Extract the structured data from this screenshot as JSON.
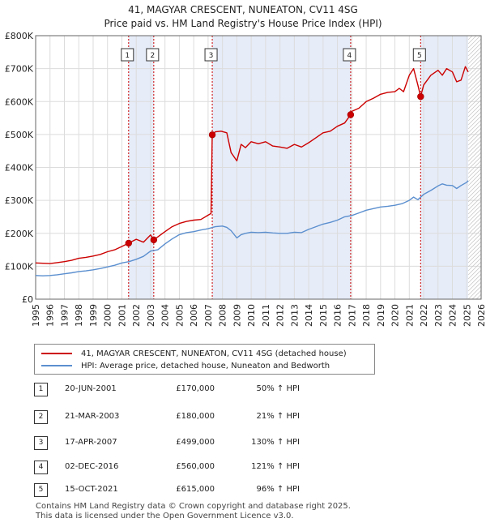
{
  "chart_data": {
    "type": "line",
    "title": "41, MAGYAR CRESCENT, NUNEATON, CV11 4SG",
    "subtitle": "Price paid vs. HM Land Registry's House Price Index (HPI)",
    "xlim": [
      1995,
      2026
    ],
    "ylim": [
      0,
      800000
    ],
    "x_ticks": [
      "1995",
      "1996",
      "1997",
      "1998",
      "1999",
      "2000",
      "2001",
      "2002",
      "2003",
      "2004",
      "2005",
      "2006",
      "2007",
      "2008",
      "2009",
      "2010",
      "2011",
      "2012",
      "2013",
      "2014",
      "2015",
      "2016",
      "2017",
      "2018",
      "2019",
      "2020",
      "2021",
      "2022",
      "2023",
      "2024",
      "2025",
      "2026"
    ],
    "y_ticks": [
      {
        "value": 0,
        "label": "£0"
      },
      {
        "value": 100000,
        "label": "£100K"
      },
      {
        "value": 200000,
        "label": "£200K"
      },
      {
        "value": 300000,
        "label": "£300K"
      },
      {
        "value": 400000,
        "label": "£400K"
      },
      {
        "value": 500000,
        "label": "£500K"
      },
      {
        "value": 600000,
        "label": "£600K"
      },
      {
        "value": 700000,
        "label": "£700K"
      },
      {
        "value": 800000,
        "label": "£800K"
      }
    ],
    "grid": true,
    "shaded_periods": [
      [
        2001.47,
        2003.22
      ],
      [
        2007.29,
        2016.92
      ],
      [
        2021.79,
        2025.1
      ]
    ],
    "series": [
      {
        "name": "41, MAGYAR CRESCENT, NUNEATON, CV11 4SG (detached house)",
        "color": "#cc0000",
        "x": [
          1995,
          1995.5,
          1996,
          1996.5,
          1997,
          1997.5,
          1998,
          1998.5,
          1999,
          1999.5,
          2000,
          2000.5,
          2001,
          2001.47,
          2002,
          2002.5,
          2003,
          2003.22,
          2003.5,
          2004,
          2004.5,
          2005,
          2005.5,
          2006,
          2006.5,
          2007,
          2007.2,
          2007.29,
          2007.5,
          2007.9,
          2008.3,
          2008.6,
          2009,
          2009.3,
          2009.6,
          2010,
          2010.5,
          2011,
          2011.5,
          2012,
          2012.5,
          2013,
          2013.5,
          2014,
          2014.5,
          2015,
          2015.5,
          2016,
          2016.5,
          2016.92,
          2017,
          2017.5,
          2018,
          2018.5,
          2019,
          2019.5,
          2020,
          2020.3,
          2020.6,
          2021,
          2021.3,
          2021.6,
          2021.79,
          2022,
          2022.5,
          2023,
          2023.3,
          2023.6,
          2024,
          2024.3,
          2024.6,
          2024.9,
          2025.1
        ],
        "y": [
          110000,
          109000,
          108000,
          111000,
          114000,
          118000,
          124000,
          127000,
          131000,
          136000,
          144000,
          150000,
          160000,
          170000,
          182000,
          173000,
          195000,
          180000,
          189000,
          205000,
          220000,
          230000,
          236000,
          240000,
          242000,
          255000,
          260000,
          499000,
          508000,
          510000,
          505000,
          445000,
          420000,
          470000,
          460000,
          478000,
          472000,
          478000,
          465000,
          462000,
          458000,
          470000,
          462000,
          475000,
          490000,
          505000,
          510000,
          525000,
          535000,
          560000,
          570000,
          580000,
          600000,
          610000,
          622000,
          628000,
          630000,
          640000,
          630000,
          680000,
          700000,
          650000,
          615000,
          650000,
          680000,
          695000,
          680000,
          700000,
          690000,
          660000,
          665000,
          706000,
          690000
        ]
      },
      {
        "name": "HPI: Average price, detached house, Nuneaton and Bedworth",
        "color": "#5b8fcf",
        "x": [
          1995,
          1995.5,
          1996,
          1996.5,
          1997,
          1997.5,
          1998,
          1998.5,
          1999,
          1999.5,
          2000,
          2000.5,
          2001,
          2001.5,
          2002,
          2002.5,
          2003,
          2003.5,
          2004,
          2004.5,
          2005,
          2005.5,
          2006,
          2006.5,
          2007,
          2007.5,
          2008,
          2008.3,
          2008.6,
          2009,
          2009.3,
          2009.6,
          2010,
          2010.5,
          2011,
          2011.5,
          2012,
          2012.5,
          2013,
          2013.5,
          2014,
          2014.5,
          2015,
          2015.5,
          2016,
          2016.5,
          2017,
          2017.5,
          2018,
          2018.5,
          2019,
          2019.5,
          2020,
          2020.5,
          2021,
          2021.3,
          2021.6,
          2022,
          2022.5,
          2023,
          2023.3,
          2023.6,
          2024,
          2024.3,
          2024.6,
          2025,
          2025.1
        ],
        "y": [
          72000,
          71000,
          72000,
          74000,
          77000,
          80000,
          84000,
          86000,
          89000,
          93000,
          98000,
          103000,
          110000,
          114000,
          121000,
          130000,
          146000,
          150000,
          168000,
          183000,
          196000,
          202000,
          205000,
          210000,
          214000,
          220000,
          222000,
          218000,
          208000,
          186000,
          196000,
          200000,
          203000,
          202000,
          203000,
          201000,
          200000,
          200000,
          203000,
          202000,
          212000,
          220000,
          228000,
          233000,
          240000,
          250000,
          254000,
          262000,
          270000,
          275000,
          280000,
          282000,
          285000,
          290000,
          300000,
          310000,
          302000,
          318000,
          330000,
          344000,
          350000,
          346000,
          345000,
          336000,
          345000,
          355000,
          360000
        ]
      }
    ],
    "sales": [
      {
        "n": "1",
        "x": 2001.47,
        "price": 170000,
        "date": "20-JUN-2001",
        "price_label": "£170,000",
        "hpi_label": "50% ↑ HPI"
      },
      {
        "n": "2",
        "x": 2003.22,
        "price": 180000,
        "date": "21-MAR-2003",
        "price_label": "£180,000",
        "hpi_label": "21% ↑ HPI"
      },
      {
        "n": "3",
        "x": 2007.29,
        "price": 499000,
        "date": "17-APR-2007",
        "price_label": "£499,000",
        "hpi_label": "130% ↑ HPI"
      },
      {
        "n": "4",
        "x": 2016.92,
        "price": 560000,
        "date": "02-DEC-2016",
        "price_label": "£560,000",
        "hpi_label": "121% ↑ HPI"
      },
      {
        "n": "5",
        "x": 2021.79,
        "price": 615000,
        "date": "15-OCT-2021",
        "price_label": "£615,000",
        "hpi_label": "96% ↑ HPI"
      }
    ],
    "legend": [
      {
        "label": "41, MAGYAR CRESCENT, NUNEATON, CV11 4SG (detached house)",
        "color": "#cc0000"
      },
      {
        "label": "HPI: Average price, detached house, Nuneaton and Bedworth",
        "color": "#5b8fcf"
      }
    ]
  },
  "footer": {
    "line1": "Contains HM Land Registry data © Crown copyright and database right 2025.",
    "line2": "This data is licensed under the Open Government Licence v3.0."
  }
}
